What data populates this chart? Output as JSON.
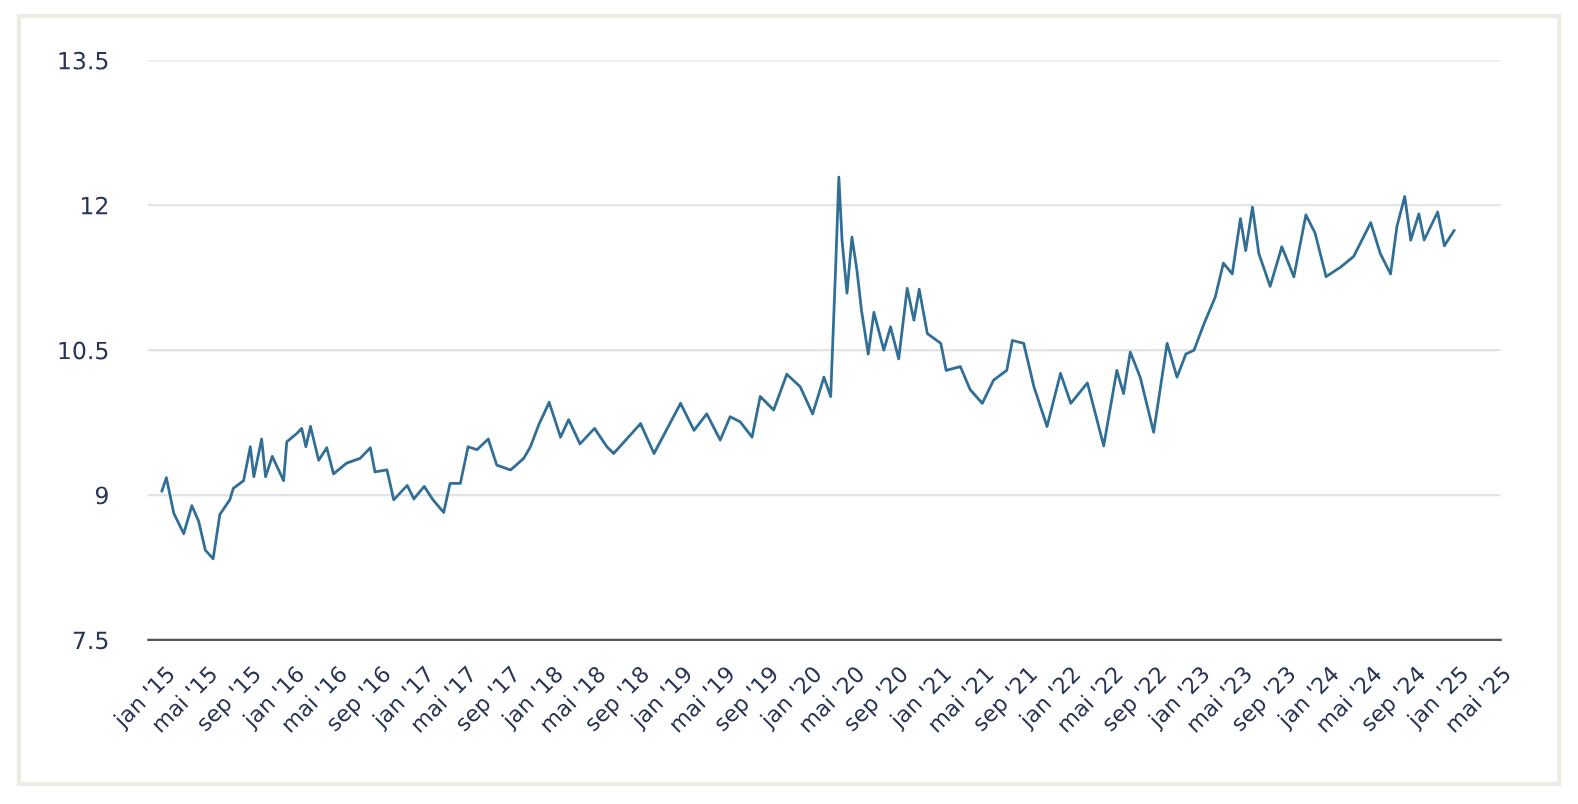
{
  "chart_data": {
    "type": "line",
    "x": [
      "2014-12-24",
      "2015-01-06",
      "2015-01-27",
      "2015-02-24",
      "2015-03-19",
      "2015-04-07",
      "2015-04-26",
      "2015-05-18",
      "2015-06-06",
      "2015-07-04",
      "2015-07-14",
      "2015-08-12",
      "2015-08-31",
      "2015-09-10",
      "2015-10-02",
      "2015-10-13",
      "2015-11-01",
      "2015-12-03",
      "2015-12-12",
      "2016-01-10",
      "2016-01-23",
      "2016-02-04",
      "2016-02-17",
      "2016-03-11",
      "2016-04-03",
      "2016-04-22",
      "2016-05-29",
      "2016-07-06",
      "2016-08-04",
      "2016-08-17",
      "2016-09-20",
      "2016-10-09",
      "2016-11-16",
      "2016-12-05",
      "2017-01-03",
      "2017-01-28",
      "2017-02-27",
      "2017-03-17",
      "2017-04-15",
      "2017-05-07",
      "2017-06-01",
      "2017-07-03",
      "2017-07-27",
      "2017-09-04",
      "2017-10-11",
      "2017-10-30",
      "2017-11-24",
      "2017-12-22",
      "2018-01-23",
      "2018-02-15",
      "2018-03-19",
      "2018-04-29",
      "2018-06-03",
      "2018-06-22",
      "2018-09-06",
      "2018-10-14",
      "2018-12-28",
      "2019-02-04",
      "2019-03-12",
      "2019-04-19",
      "2019-05-17",
      "2019-06-14",
      "2019-07-18",
      "2019-08-10",
      "2019-09-17",
      "2019-10-24",
      "2019-12-01",
      "2020-01-05",
      "2020-02-06",
      "2020-02-25",
      "2020-03-10",
      "2020-03-19",
      "2020-03-28",
      "2020-04-11",
      "2020-04-25",
      "2020-05-09",
      "2020-05-22",
      "2020-06-10",
      "2020-06-26",
      "2020-07-24",
      "2020-08-12",
      "2020-09-04",
      "2020-09-28",
      "2020-10-17",
      "2020-11-01",
      "2020-11-24",
      "2021-01-01",
      "2021-01-16",
      "2021-02-25",
      "2021-03-25",
      "2021-04-28",
      "2021-05-30",
      "2021-07-06",
      "2021-07-22",
      "2021-08-23",
      "2021-09-21",
      "2021-10-28",
      "2021-12-05",
      "2022-01-03",
      "2022-02-19",
      "2022-04-06",
      "2022-05-13",
      "2022-06-01",
      "2022-06-20",
      "2022-07-18",
      "2022-08-25",
      "2022-10-02",
      "2022-10-30",
      "2022-11-24",
      "2022-12-17",
      "2023-01-15",
      "2023-02-15",
      "2023-03-10",
      "2023-04-04",
      "2023-04-27",
      "2023-05-12",
      "2023-05-31",
      "2023-06-18",
      "2023-07-20",
      "2023-08-22",
      "2023-09-25",
      "2023-10-29",
      "2023-11-24",
      "2023-12-25",
      "2024-02-04",
      "2024-03-12",
      "2024-04-29",
      "2024-05-26",
      "2024-06-24",
      "2024-07-12",
      "2024-08-03",
      "2024-08-20",
      "2024-09-12",
      "2024-09-27",
      "2024-11-04",
      "2024-11-23",
      "2024-12-21"
    ],
    "series": [
      {
        "color": "#316f96",
        "values": [
          9.04,
          9.18,
          8.81,
          8.6,
          8.89,
          8.73,
          8.43,
          8.34,
          8.8,
          8.95,
          9.07,
          9.15,
          9.5,
          9.19,
          9.58,
          9.19,
          9.4,
          9.15,
          9.55,
          9.64,
          9.69,
          9.5,
          9.71,
          9.36,
          9.49,
          9.22,
          9.33,
          9.38,
          9.49,
          9.24,
          9.26,
          8.95,
          9.1,
          8.96,
          9.09,
          8.95,
          8.82,
          9.12,
          9.12,
          9.5,
          9.47,
          9.58,
          9.31,
          9.26,
          9.38,
          9.5,
          9.74,
          9.96,
          9.6,
          9.78,
          9.53,
          9.69,
          9.5,
          9.43,
          9.74,
          9.43,
          9.95,
          9.67,
          9.84,
          9.57,
          9.81,
          9.76,
          9.6,
          10.02,
          9.88,
          10.25,
          10.12,
          9.84,
          10.22,
          10.02,
          11.36,
          12.29,
          11.64,
          11.09,
          11.67,
          11.33,
          10.91,
          10.46,
          10.89,
          10.5,
          10.74,
          10.41,
          11.14,
          10.81,
          11.13,
          10.67,
          10.57,
          10.29,
          10.33,
          10.09,
          9.95,
          10.19,
          10.29,
          10.6,
          10.57,
          10.12,
          9.71,
          10.26,
          9.95,
          10.16,
          9.51,
          10.29,
          10.05,
          10.48,
          10.22,
          9.65,
          10.57,
          10.22,
          10.46,
          10.5,
          10.78,
          11.05,
          11.4,
          11.29,
          11.86,
          11.53,
          11.98,
          11.5,
          11.16,
          11.57,
          11.26,
          11.9,
          11.71,
          11.26,
          11.36,
          11.47,
          11.82,
          11.5,
          11.29,
          11.78,
          12.09,
          11.64,
          11.91,
          11.64,
          11.93,
          11.58,
          11.74
        ]
      }
    ],
    "xlim": [
      "2014-11-16",
      "2025-05-01"
    ],
    "xticks": [
      {
        "value": "2015-01-01",
        "label": "jan '15"
      },
      {
        "value": "2015-05-01",
        "label": "mai '15"
      },
      {
        "value": "2015-09-01",
        "label": "sep '15"
      },
      {
        "value": "2016-01-01",
        "label": "jan '16"
      },
      {
        "value": "2016-05-01",
        "label": "mai '16"
      },
      {
        "value": "2016-09-01",
        "label": "sep '16"
      },
      {
        "value": "2017-01-01",
        "label": "jan '17"
      },
      {
        "value": "2017-05-01",
        "label": "mai '17"
      },
      {
        "value": "2017-09-01",
        "label": "sep '17"
      },
      {
        "value": "2018-01-01",
        "label": "jan '18"
      },
      {
        "value": "2018-05-01",
        "label": "mai '18"
      },
      {
        "value": "2018-09-01",
        "label": "sep '18"
      },
      {
        "value": "2019-01-01",
        "label": "jan '19"
      },
      {
        "value": "2019-05-01",
        "label": "mai '19"
      },
      {
        "value": "2019-09-01",
        "label": "sep '19"
      },
      {
        "value": "2020-01-01",
        "label": "jan '20"
      },
      {
        "value": "2020-05-01",
        "label": "mai '20"
      },
      {
        "value": "2020-09-01",
        "label": "sep '20"
      },
      {
        "value": "2021-01-01",
        "label": "jan '21"
      },
      {
        "value": "2021-05-01",
        "label": "mai '21"
      },
      {
        "value": "2021-09-01",
        "label": "sep '21"
      },
      {
        "value": "2022-01-01",
        "label": "jan '22"
      },
      {
        "value": "2022-05-01",
        "label": "mai '22"
      },
      {
        "value": "2022-09-01",
        "label": "sep '22"
      },
      {
        "value": "2023-01-01",
        "label": "jan '23"
      },
      {
        "value": "2023-05-01",
        "label": "mai '23"
      },
      {
        "value": "2023-09-01",
        "label": "sep '23"
      },
      {
        "value": "2024-01-01",
        "label": "jan '24"
      },
      {
        "value": "2024-05-01",
        "label": "mai '24"
      },
      {
        "value": "2024-09-01",
        "label": "sep '24"
      },
      {
        "value": "2025-01-01",
        "label": "jan '25"
      },
      {
        "value": "2025-05-01",
        "label": "mai '25"
      }
    ],
    "ylim": [
      7.5,
      13.5
    ],
    "yticks": [
      7.5,
      9,
      10.5,
      12,
      13.5
    ],
    "grid": "y"
  }
}
